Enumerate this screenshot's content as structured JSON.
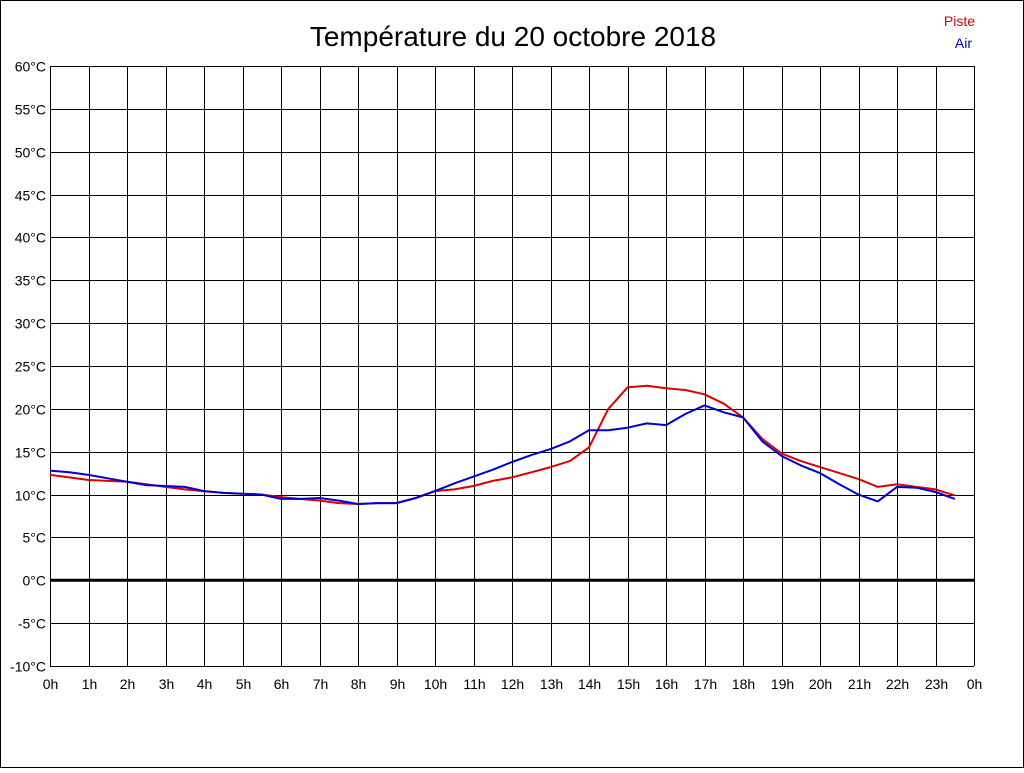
{
  "chart_data": {
    "type": "line",
    "title": "Température du 20 octobre 2018",
    "xlabel": "",
    "ylabel": "",
    "x_tick_labels": [
      "0h",
      "1h",
      "2h",
      "3h",
      "4h",
      "5h",
      "6h",
      "7h",
      "8h",
      "9h",
      "10h",
      "11h",
      "12h",
      "13h",
      "14h",
      "15h",
      "16h",
      "17h",
      "18h",
      "19h",
      "20h",
      "21h",
      "22h",
      "23h",
      "0h"
    ],
    "y_tick_labels": [
      "60°C",
      "55°C",
      "50°C",
      "45°C",
      "40°C",
      "35°C",
      "30°C",
      "25°C",
      "20°C",
      "15°C",
      "10°C",
      "5°C",
      "0°C",
      "-5°C",
      "-10°C"
    ],
    "xlim": [
      0,
      24
    ],
    "ylim": [
      -10,
      60
    ],
    "grid": true,
    "legend_position": "top-right",
    "series": [
      {
        "name": "Piste",
        "color": "#dd0000",
        "x": [
          0,
          0.5,
          1,
          1.5,
          2,
          2.5,
          3,
          3.5,
          4,
          4.5,
          5,
          5.5,
          6,
          6.5,
          7,
          7.5,
          8,
          8.5,
          9,
          9.5,
          10,
          10.5,
          11,
          11.5,
          12,
          12.5,
          13,
          13.5,
          14,
          14.5,
          15,
          15.5,
          16,
          16.5,
          17,
          17.5,
          18,
          18.5,
          19,
          19.5,
          20,
          20.5,
          21,
          21.5,
          22,
          22.5,
          23,
          23.5
        ],
        "values": [
          12.3,
          12.0,
          11.7,
          11.6,
          11.5,
          11.2,
          10.9,
          10.6,
          10.4,
          10.2,
          10.1,
          10.0,
          9.7,
          9.5,
          9.3,
          9.0,
          8.9,
          9.0,
          9.0,
          9.6,
          10.4,
          10.6,
          11.0,
          11.6,
          12.0,
          12.6,
          13.2,
          13.9,
          15.5,
          20.0,
          22.5,
          22.7,
          22.4,
          22.2,
          21.7,
          20.6,
          19.0,
          16.5,
          14.8,
          13.9,
          13.2,
          12.5,
          11.8,
          10.9,
          11.2,
          10.9,
          10.6,
          9.9
        ]
      },
      {
        "name": "Air",
        "color": "#0000cc",
        "x": [
          0,
          0.5,
          1,
          1.5,
          2,
          2.5,
          3,
          3.5,
          4,
          4.5,
          5,
          5.5,
          6,
          6.5,
          7,
          7.5,
          8,
          8.5,
          9,
          9.5,
          10,
          10.5,
          11,
          11.5,
          12,
          12.5,
          13,
          13.5,
          14,
          14.5,
          15,
          15.5,
          16,
          16.5,
          17,
          17.5,
          18,
          18.5,
          19,
          19.5,
          20,
          20.5,
          21,
          21.5,
          22,
          22.5,
          23,
          23.5
        ],
        "values": [
          12.8,
          12.6,
          12.3,
          11.9,
          11.5,
          11.1,
          11.0,
          10.9,
          10.4,
          10.2,
          10.1,
          10.0,
          9.5,
          9.5,
          9.6,
          9.3,
          8.9,
          9.0,
          9.0,
          9.6,
          10.4,
          11.3,
          12.1,
          12.9,
          13.8,
          14.6,
          15.3,
          16.2,
          17.5,
          17.5,
          17.8,
          18.3,
          18.1,
          19.4,
          20.4,
          19.6,
          19.0,
          16.2,
          14.5,
          13.4,
          12.5,
          11.2,
          10.0,
          9.2,
          10.9,
          10.8,
          10.3,
          9.5
        ]
      }
    ]
  }
}
